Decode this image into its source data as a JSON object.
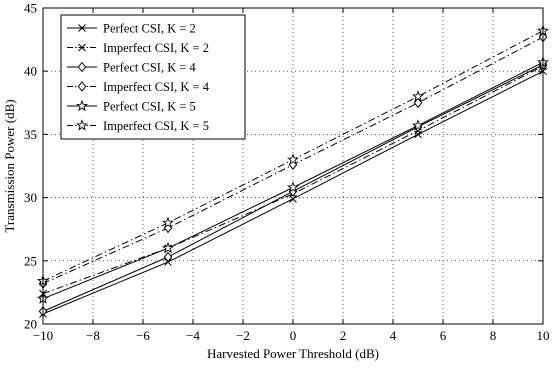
{
  "chart_data": {
    "type": "line",
    "title": "",
    "xlabel": "Harvested Power Threshold (dB)",
    "ylabel": "Transmission Power (dB)",
    "xlim": [
      -10,
      10
    ],
    "ylim": [
      20,
      45
    ],
    "xticks": [
      -10,
      -8,
      -6,
      -4,
      -2,
      0,
      2,
      4,
      6,
      8,
      10
    ],
    "yticks": [
      20,
      25,
      30,
      35,
      40,
      45
    ],
    "xtick_labels": [
      "−10",
      "−8",
      "−6",
      "−4",
      "−2",
      "0",
      "2",
      "4",
      "6",
      "8",
      "10"
    ],
    "ytick_labels": [
      "20",
      "25",
      "30",
      "35",
      "40",
      "45"
    ],
    "grid": "dotted",
    "legend_position": "top-left",
    "x": [
      -10,
      -5,
      0,
      5,
      10
    ],
    "series": [
      {
        "name": "Perfect CSI, K = 2",
        "values": [
          20.8,
          24.9,
          29.9,
          35.0,
          40.0
        ],
        "line_style": "solid",
        "marker": "x"
      },
      {
        "name": "Imperfect CSI, K = 2",
        "values": [
          22.4,
          26.0,
          30.3,
          35.3,
          40.4
        ],
        "line_style": "dashdot",
        "marker": "x"
      },
      {
        "name": "Perfect CSI, K = 4",
        "values": [
          21.0,
          25.3,
          30.5,
          35.6,
          40.5
        ],
        "line_style": "solid",
        "marker": "diamond"
      },
      {
        "name": "Imperfect CSI, K = 4",
        "values": [
          23.2,
          27.6,
          32.6,
          37.5,
          42.7
        ],
        "line_style": "dashdot",
        "marker": "diamond"
      },
      {
        "name": "Perfect CSI, K = 5",
        "values": [
          22.0,
          26.0,
          30.8,
          35.7,
          40.7
        ],
        "line_style": "solid",
        "marker": "star"
      },
      {
        "name": "Imperfect CSI, K = 5",
        "values": [
          23.4,
          28.0,
          33.0,
          38.0,
          43.2
        ],
        "line_style": "dashdot",
        "marker": "star"
      }
    ]
  }
}
